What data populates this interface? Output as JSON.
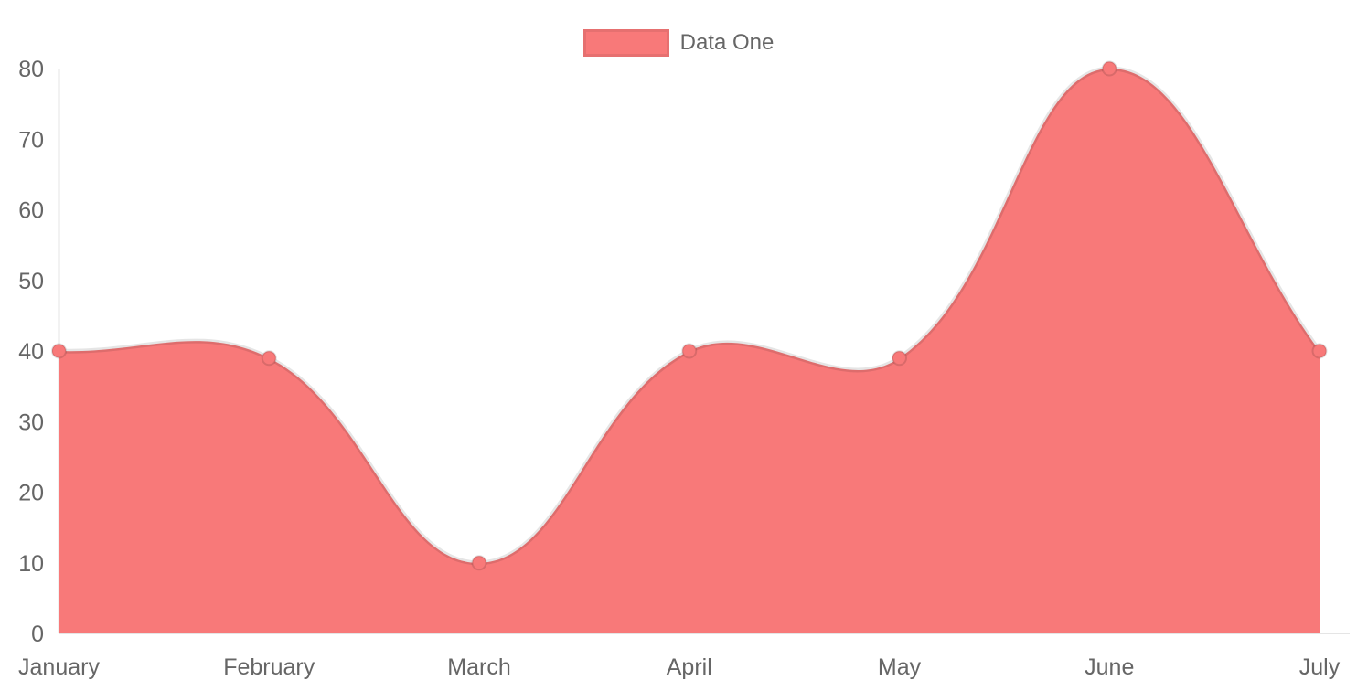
{
  "legend": {
    "position": "top",
    "items": [
      {
        "label": "Data One",
        "color": "#f87979"
      }
    ]
  },
  "chart_data": {
    "type": "area",
    "style": "chartjs-filled-line",
    "title": "",
    "xlabel": "",
    "ylabel": "",
    "categories": [
      "January",
      "February",
      "March",
      "April",
      "May",
      "June",
      "July"
    ],
    "series": [
      {
        "name": "Data One",
        "values": [
          40,
          39,
          10,
          40,
          39,
          80,
          40
        ],
        "fill_color": "#f87979",
        "line_color": "rgba(0,0,0,0.10)",
        "line_width": 5,
        "point_fill": "#f87979",
        "point_border": "rgba(0,0,0,0.12)",
        "point_radius": 7.5,
        "tension": 0.4
      }
    ],
    "ylim": [
      0,
      80
    ],
    "y_ticks": [
      0,
      10,
      20,
      30,
      40,
      50,
      60,
      70,
      80
    ],
    "grid": false,
    "legend_position": "top",
    "axis_color": "rgba(0,0,0,0.10)",
    "tick_label_color": "#666666",
    "background": "#ffffff"
  }
}
